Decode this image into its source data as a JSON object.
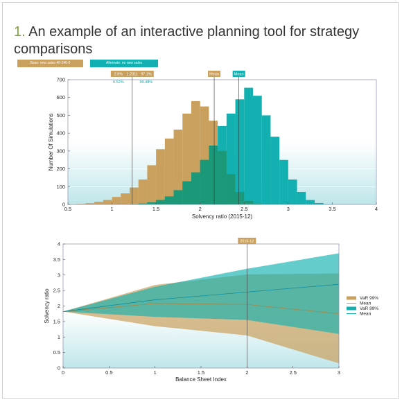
{
  "title": {
    "number": "1.",
    "text": "An example of an interactive planning tool for strategy comparisons"
  },
  "buttons": {
    "base": "Base: new sales 40-246-0",
    "alternate": "Alternate: no new sales"
  },
  "colors": {
    "base": "#c9a05d",
    "alternate": "#12b0b0",
    "overlap": "#1a9878",
    "grid_fade": "#bfe6ea"
  },
  "chart_data": [
    {
      "type": "bar",
      "name_hint": "histogram",
      "xlabel": "Solvency ratio (2015-12)",
      "ylabel": "Number Of Simulations",
      "xlim": [
        0.5,
        4
      ],
      "ylim": [
        0,
        700
      ],
      "xticks": [
        "0.5",
        "1",
        "1.5",
        "2",
        "2.5",
        "3",
        "3.5",
        "4"
      ],
      "yticks": [
        "0",
        "100",
        "200",
        "300",
        "400",
        "500",
        "600",
        "700"
      ],
      "bin_start": 0.5,
      "bin_width": 0.1,
      "series": [
        {
          "name": "Base",
          "values": [
            1,
            3,
            7,
            15,
            25,
            42,
            62,
            95,
            140,
            220,
            310,
            370,
            420,
            510,
            580,
            550,
            470,
            300,
            170,
            70,
            20,
            5,
            1,
            0,
            0,
            0,
            0,
            0,
            0,
            0,
            0,
            0,
            0,
            0,
            0
          ]
        },
        {
          "name": "Alternate",
          "values": [
            0,
            0,
            0,
            0,
            0,
            0,
            0,
            2,
            5,
            12,
            25,
            45,
            80,
            130,
            180,
            250,
            330,
            440,
            510,
            590,
            655,
            610,
            500,
            380,
            250,
            140,
            70,
            25,
            8,
            2,
            0,
            0,
            0,
            0,
            0
          ]
        }
      ],
      "markers": {
        "left_line_x": 1.23,
        "left_labels_base": [
          "2.9%",
          "1.2311",
          "97.1%"
        ],
        "left_labels_alt": [
          "0.52%",
          "99.48%"
        ],
        "mean_base_x": 2.16,
        "mean_alt_x": 2.44,
        "mean_label": "Mean"
      }
    },
    {
      "type": "area",
      "name_hint": "fan",
      "xlabel": "Balance Sheet Index",
      "ylabel": "Solvency ratio",
      "xlim": [
        0,
        3
      ],
      "ylim": [
        0,
        4
      ],
      "xticks": [
        "0",
        "0.5",
        "1",
        "1.5",
        "2",
        "2.5",
        "3"
      ],
      "yticks": [
        "0",
        "0.5",
        "1",
        "1.5",
        "2",
        "2.5",
        "3",
        "3.5",
        "4"
      ],
      "x": [
        0,
        1,
        2,
        3
      ],
      "base_upper": [
        1.82,
        2.68,
        3.02,
        3.05
      ],
      "base_lower": [
        1.82,
        1.35,
        1.05,
        0.15
      ],
      "base_mean": [
        1.82,
        2.08,
        2.05,
        1.75
      ],
      "alt_upper": [
        1.82,
        2.62,
        3.2,
        3.7
      ],
      "alt_lower": [
        1.82,
        1.65,
        1.55,
        1.1
      ],
      "alt_mean": [
        1.82,
        2.2,
        2.45,
        2.7
      ],
      "marker": {
        "x": 2,
        "label": "2015-12"
      },
      "legend": [
        {
          "label": "VaR 99%",
          "kind": "box",
          "color": "#c9a05d"
        },
        {
          "label": "Mean",
          "kind": "line",
          "color": "#c9a05d"
        },
        {
          "label": "VaR 99%",
          "kind": "box",
          "color": "#12b0b0"
        },
        {
          "label": "Mean",
          "kind": "line",
          "color": "#12b0b0"
        }
      ]
    }
  ]
}
